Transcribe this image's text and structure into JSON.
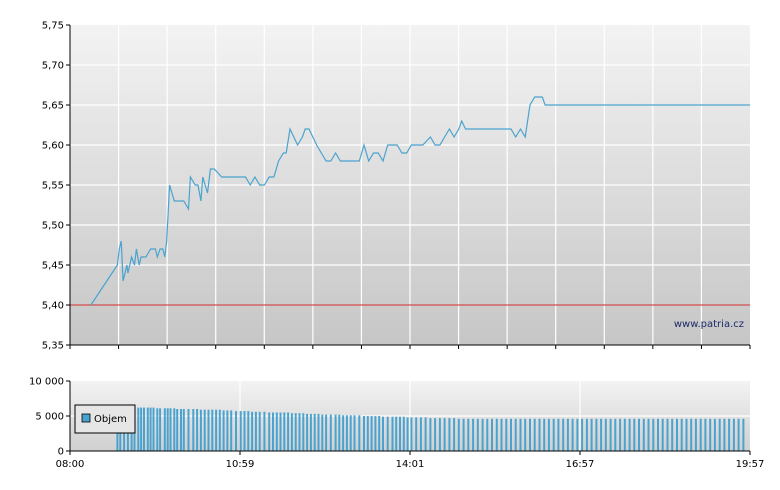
{
  "chart_data": [
    {
      "type": "line",
      "title": "",
      "xlabel": "",
      "ylabel": "",
      "ylim": [
        5.35,
        5.75
      ],
      "y_ticks": [
        "5,75",
        "5,70",
        "5,65",
        "5,60",
        "5,55",
        "5,50",
        "5,45",
        "5,40",
        "5,35"
      ],
      "x_range_minutes": [
        480,
        1197
      ],
      "grid": true,
      "reference_line": {
        "value": 5.4,
        "color": "#cc2222"
      },
      "watermark": "www.patria.cz",
      "series": [
        {
          "color": "#4aa3cf",
          "x_minutes": [
            502,
            530,
            532,
            534,
            536,
            538,
            540,
            541,
            545,
            548,
            550,
            553,
            555,
            560,
            565,
            570,
            572,
            575,
            578,
            580,
            582,
            585,
            590,
            595,
            600,
            605,
            607,
            612,
            615,
            618,
            620,
            625,
            628,
            632,
            640,
            645,
            650,
            655,
            660,
            665,
            670,
            675,
            680,
            685,
            690,
            695,
            700,
            705,
            708,
            712,
            720,
            725,
            728,
            732,
            740,
            745,
            750,
            755,
            760,
            765,
            770,
            775,
            780,
            785,
            790,
            795,
            800,
            805,
            810,
            815,
            820,
            825,
            830,
            835,
            840,
            845,
            848,
            852,
            860,
            865,
            870,
            875,
            880,
            885,
            890,
            893,
            897,
            900,
            905,
            910,
            915,
            920,
            925,
            930,
            935,
            940,
            945,
            950,
            955,
            960,
            965,
            970,
            975,
            978,
            981,
            985,
            990,
            992,
            995,
            1000,
            1197
          ],
          "values": [
            5.4,
            5.45,
            5.47,
            5.48,
            5.43,
            5.44,
            5.45,
            5.44,
            5.46,
            5.45,
            5.47,
            5.45,
            5.46,
            5.46,
            5.47,
            5.47,
            5.46,
            5.47,
            5.47,
            5.46,
            5.48,
            5.55,
            5.53,
            5.53,
            5.53,
            5.52,
            5.56,
            5.55,
            5.55,
            5.53,
            5.56,
            5.54,
            5.57,
            5.57,
            5.56,
            5.56,
            5.56,
            5.56,
            5.56,
            5.56,
            5.55,
            5.56,
            5.55,
            5.55,
            5.56,
            5.56,
            5.58,
            5.59,
            5.59,
            5.62,
            5.6,
            5.61,
            5.62,
            5.62,
            5.6,
            5.59,
            5.58,
            5.58,
            5.59,
            5.58,
            5.58,
            5.58,
            5.58,
            5.58,
            5.6,
            5.58,
            5.59,
            5.59,
            5.58,
            5.6,
            5.6,
            5.6,
            5.59,
            5.59,
            5.6,
            5.6,
            5.6,
            5.6,
            5.61,
            5.6,
            5.6,
            5.61,
            5.62,
            5.61,
            5.62,
            5.63,
            5.62,
            5.62,
            5.62,
            5.62,
            5.62,
            5.62,
            5.62,
            5.62,
            5.62,
            5.62,
            5.62,
            5.61,
            5.62,
            5.61,
            5.65,
            5.66,
            5.66,
            5.66,
            5.65,
            5.65,
            5.65,
            5.65,
            5.65,
            5.65,
            5.65
          ]
        }
      ]
    },
    {
      "type": "bar",
      "title": "",
      "xlabel": "",
      "ylabel": "",
      "ylim": [
        0,
        10000
      ],
      "y_ticks": [
        "10 000",
        "5 000",
        "0"
      ],
      "x_tick_labels": [
        "08:00",
        "10:59",
        "14:01",
        "16:57",
        "19:57"
      ],
      "x_range_minutes": [
        480,
        1197
      ],
      "grid": true,
      "legend": {
        "position": "left",
        "entries": [
          "Objem"
        ]
      },
      "series": [
        {
          "name": "Objem",
          "color": "#4aa3cf",
          "x_minutes": [
            530,
            533,
            537,
            541,
            545,
            548,
            552,
            555,
            558,
            562,
            565,
            568,
            572,
            575,
            580,
            583,
            586,
            590,
            593,
            597,
            600,
            605,
            610,
            614,
            618,
            622,
            626,
            630,
            634,
            638,
            642,
            646,
            650,
            655,
            660,
            664,
            668,
            672,
            676,
            680,
            685,
            690,
            694,
            698,
            702,
            706,
            710,
            714,
            718,
            722,
            726,
            730,
            734,
            738,
            742,
            746,
            750,
            755,
            760,
            764,
            768,
            772,
            776,
            780,
            785,
            790,
            794,
            798,
            802,
            806,
            810,
            815,
            820,
            824,
            828,
            832,
            836,
            840,
            845,
            850,
            855,
            860,
            865,
            870,
            875,
            880,
            885,
            890,
            895,
            900,
            905,
            910,
            915,
            920,
            925,
            930,
            935,
            940,
            945,
            950,
            955,
            960,
            965,
            970,
            975,
            980,
            985,
            990,
            995,
            1000,
            1005,
            1010,
            1015,
            1020,
            1025,
            1030,
            1035,
            1040,
            1045,
            1050,
            1055,
            1060,
            1065,
            1070,
            1075,
            1080,
            1085,
            1090,
            1095,
            1100,
            1105,
            1110,
            1115,
            1120,
            1125,
            1130,
            1135,
            1140,
            1145,
            1150,
            1155,
            1160,
            1165,
            1170,
            1175,
            1180,
            1185,
            1190
          ],
          "values": [
            6200,
            6200,
            6200,
            6200,
            6200,
            6200,
            6200,
            6200,
            6200,
            6200,
            6200,
            6200,
            6100,
            6100,
            6100,
            6100,
            6100,
            6100,
            6000,
            6000,
            6000,
            6000,
            6000,
            6000,
            5900,
            5900,
            5900,
            5900,
            5900,
            5900,
            5800,
            5800,
            5800,
            5700,
            5700,
            5700,
            5700,
            5600,
            5600,
            5600,
            5600,
            5500,
            5500,
            5500,
            5500,
            5500,
            5500,
            5400,
            5400,
            5400,
            5400,
            5300,
            5300,
            5300,
            5300,
            5200,
            5200,
            5200,
            5200,
            5200,
            5100,
            5100,
            5100,
            5100,
            5100,
            5000,
            5000,
            5000,
            5000,
            5000,
            4900,
            4900,
            4900,
            4900,
            4900,
            4900,
            4800,
            4800,
            4800,
            4800,
            4800,
            4700,
            4700,
            4700,
            4700,
            4700,
            4700,
            4600,
            4600,
            4600,
            4600,
            4600,
            4600,
            4600,
            4600,
            4600,
            4600,
            4600,
            4600,
            4600,
            4600,
            4600,
            4600,
            4600,
            4600,
            4600,
            4600,
            4600,
            4600,
            4600,
            4600,
            4600,
            4600,
            4600,
            4600,
            4600,
            4600,
            4600,
            4600,
            4600,
            4600,
            4600,
            4600,
            4600,
            4600,
            4600,
            4600,
            4600,
            4600,
            4600,
            4600,
            4600,
            4600,
            4600,
            4600,
            4600,
            4600,
            4600,
            4600,
            4600,
            4600,
            4600,
            4600,
            4600,
            4600,
            4600,
            4600,
            4600
          ]
        }
      ]
    }
  ],
  "colors": {
    "line": "#4aa3cf",
    "reference": "#cc2222",
    "grid": "#ffffff",
    "axis": "#000000",
    "bg_top": "#f2f2f2",
    "bg_bottom": "#c8c8c8"
  }
}
